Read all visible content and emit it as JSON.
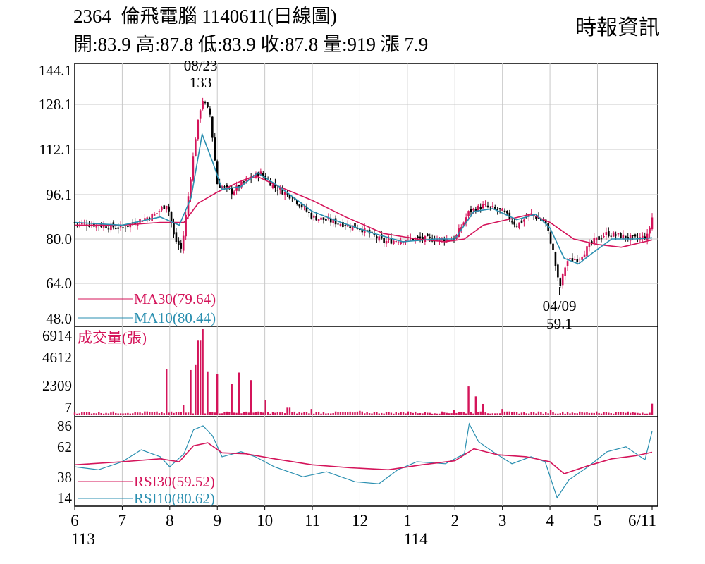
{
  "header": {
    "code": "2364",
    "name": "倫飛電腦",
    "date_label": "1140611(日線圖)",
    "source": "時報資訊",
    "ohlc": "開:83.9 高:87.8 低:83.9 收:87.8 量:919 漲 7.9"
  },
  "chart_data": [
    {
      "panel": "price",
      "type": "candlestick",
      "y_ticks": [
        "144.1",
        "128.1",
        "112.1",
        "96.1",
        "80.0",
        "64.0",
        "48.0"
      ],
      "ylim": [
        48.0,
        144.1
      ],
      "grid": true,
      "annotations": [
        {
          "label_date": "08/23",
          "label_value": "133",
          "x_month_pos": 8.68,
          "value": 133
        },
        {
          "label_date": "04/09",
          "label_value": "59.1",
          "x_month_pos": 16.2,
          "value": 59.1
        }
      ],
      "legend": [
        {
          "text": "MA30(79.64)",
          "color": "#d4145a"
        },
        {
          "text": "MA10(80.44)",
          "color": "#2a8fb0"
        }
      ],
      "close_approx": [
        {
          "m": 6.0,
          "v": 86
        },
        {
          "m": 6.5,
          "v": 85
        },
        {
          "m": 7.0,
          "v": 84
        },
        {
          "m": 7.4,
          "v": 87
        },
        {
          "m": 7.7,
          "v": 89
        },
        {
          "m": 7.95,
          "v": 93
        },
        {
          "m": 8.1,
          "v": 80
        },
        {
          "m": 8.25,
          "v": 76
        },
        {
          "m": 8.4,
          "v": 97
        },
        {
          "m": 8.55,
          "v": 118
        },
        {
          "m": 8.68,
          "v": 131
        },
        {
          "m": 8.85,
          "v": 125
        },
        {
          "m": 9.0,
          "v": 100
        },
        {
          "m": 9.3,
          "v": 97
        },
        {
          "m": 9.6,
          "v": 101
        },
        {
          "m": 9.9,
          "v": 104
        },
        {
          "m": 10.2,
          "v": 99
        },
        {
          "m": 10.6,
          "v": 95
        },
        {
          "m": 11.0,
          "v": 88
        },
        {
          "m": 11.5,
          "v": 86
        },
        {
          "m": 12.0,
          "v": 84
        },
        {
          "m": 12.5,
          "v": 79
        },
        {
          "m": 13.0,
          "v": 80
        },
        {
          "m": 13.5,
          "v": 80
        },
        {
          "m": 14.0,
          "v": 80
        },
        {
          "m": 14.3,
          "v": 90
        },
        {
          "m": 14.6,
          "v": 92
        },
        {
          "m": 15.0,
          "v": 90
        },
        {
          "m": 15.3,
          "v": 85
        },
        {
          "m": 15.6,
          "v": 89
        },
        {
          "m": 15.9,
          "v": 86
        },
        {
          "m": 16.05,
          "v": 77
        },
        {
          "m": 16.2,
          "v": 62
        },
        {
          "m": 16.35,
          "v": 72
        },
        {
          "m": 16.6,
          "v": 73
        },
        {
          "m": 16.9,
          "v": 79
        },
        {
          "m": 17.2,
          "v": 82
        },
        {
          "m": 17.5,
          "v": 81
        },
        {
          "m": 17.8,
          "v": 80
        },
        {
          "m": 18.05,
          "v": 81
        },
        {
          "m": 18.15,
          "v": 87.8
        }
      ],
      "ma10_approx": [
        {
          "m": 6.0,
          "v": 86
        },
        {
          "m": 7.0,
          "v": 85
        },
        {
          "m": 7.8,
          "v": 88
        },
        {
          "m": 8.2,
          "v": 85
        },
        {
          "m": 8.45,
          "v": 95
        },
        {
          "m": 8.68,
          "v": 118
        },
        {
          "m": 8.9,
          "v": 108
        },
        {
          "m": 9.1,
          "v": 98
        },
        {
          "m": 9.5,
          "v": 99
        },
        {
          "m": 9.85,
          "v": 104
        },
        {
          "m": 10.3,
          "v": 99
        },
        {
          "m": 11.0,
          "v": 90
        },
        {
          "m": 11.6,
          "v": 86
        },
        {
          "m": 12.3,
          "v": 82
        },
        {
          "m": 12.9,
          "v": 79
        },
        {
          "m": 13.6,
          "v": 80
        },
        {
          "m": 14.0,
          "v": 80
        },
        {
          "m": 14.4,
          "v": 90
        },
        {
          "m": 14.8,
          "v": 91
        },
        {
          "m": 15.3,
          "v": 87
        },
        {
          "m": 15.7,
          "v": 89
        },
        {
          "m": 16.0,
          "v": 84
        },
        {
          "m": 16.3,
          "v": 73
        },
        {
          "m": 16.6,
          "v": 71
        },
        {
          "m": 16.9,
          "v": 75
        },
        {
          "m": 17.3,
          "v": 80
        },
        {
          "m": 17.8,
          "v": 80
        },
        {
          "m": 18.15,
          "v": 80.44
        }
      ],
      "ma30_approx": [
        {
          "m": 6.0,
          "v": 85
        },
        {
          "m": 7.0,
          "v": 85
        },
        {
          "m": 7.8,
          "v": 86
        },
        {
          "m": 8.3,
          "v": 86
        },
        {
          "m": 8.6,
          "v": 93
        },
        {
          "m": 9.0,
          "v": 97
        },
        {
          "m": 9.5,
          "v": 101
        },
        {
          "m": 9.8,
          "v": 103
        },
        {
          "m": 10.3,
          "v": 99
        },
        {
          "m": 11.0,
          "v": 94
        },
        {
          "m": 11.7,
          "v": 88
        },
        {
          "m": 12.5,
          "v": 82
        },
        {
          "m": 13.2,
          "v": 80
        },
        {
          "m": 13.8,
          "v": 79
        },
        {
          "m": 14.2,
          "v": 80
        },
        {
          "m": 14.6,
          "v": 85
        },
        {
          "m": 15.1,
          "v": 87
        },
        {
          "m": 15.6,
          "v": 89
        },
        {
          "m": 16.0,
          "v": 86
        },
        {
          "m": 16.5,
          "v": 80
        },
        {
          "m": 17.0,
          "v": 78
        },
        {
          "m": 17.5,
          "v": 77
        },
        {
          "m": 18.15,
          "v": 79.64
        }
      ]
    },
    {
      "panel": "volume",
      "type": "bar",
      "label": "成交量(張)",
      "y_ticks": [
        "6914",
        "4612",
        "2309",
        "7"
      ],
      "ylim": [
        0,
        6914
      ],
      "bars_approx": [
        {
          "m": 7.5,
          "v": 300
        },
        {
          "m": 7.95,
          "v": 3700
        },
        {
          "m": 8.3,
          "v": 800
        },
        {
          "m": 8.45,
          "v": 3600
        },
        {
          "m": 8.55,
          "v": 4000
        },
        {
          "m": 8.62,
          "v": 6000
        },
        {
          "m": 8.68,
          "v": 6914
        },
        {
          "m": 8.8,
          "v": 3500
        },
        {
          "m": 9.0,
          "v": 3300
        },
        {
          "m": 9.3,
          "v": 2500
        },
        {
          "m": 9.45,
          "v": 3400
        },
        {
          "m": 9.7,
          "v": 2800
        },
        {
          "m": 10.0,
          "v": 1200
        },
        {
          "m": 10.5,
          "v": 600
        },
        {
          "m": 11.0,
          "v": 500
        },
        {
          "m": 12.0,
          "v": 350
        },
        {
          "m": 13.0,
          "v": 300
        },
        {
          "m": 14.0,
          "v": 400
        },
        {
          "m": 14.3,
          "v": 2300
        },
        {
          "m": 14.45,
          "v": 1500
        },
        {
          "m": 14.6,
          "v": 900
        },
        {
          "m": 15.0,
          "v": 500
        },
        {
          "m": 16.0,
          "v": 450
        },
        {
          "m": 17.0,
          "v": 300
        },
        {
          "m": 18.15,
          "v": 919
        }
      ]
    },
    {
      "panel": "rsi",
      "type": "line",
      "y_ticks": [
        "86",
        "62",
        "38",
        "14"
      ],
      "ylim": [
        5,
        92
      ],
      "legend": [
        {
          "text": "RSI30(59.52)",
          "color": "#d4145a"
        },
        {
          "text": "RSI10(80.62)",
          "color": "#2a8fb0"
        }
      ],
      "rsi10_approx": [
        {
          "m": 6.0,
          "v": 45
        },
        {
          "m": 6.5,
          "v": 42
        },
        {
          "m": 7.0,
          "v": 50
        },
        {
          "m": 7.4,
          "v": 62
        },
        {
          "m": 7.8,
          "v": 55
        },
        {
          "m": 8.0,
          "v": 45
        },
        {
          "m": 8.3,
          "v": 58
        },
        {
          "m": 8.5,
          "v": 82
        },
        {
          "m": 8.7,
          "v": 86
        },
        {
          "m": 8.9,
          "v": 76
        },
        {
          "m": 9.1,
          "v": 55
        },
        {
          "m": 9.5,
          "v": 60
        },
        {
          "m": 9.8,
          "v": 55
        },
        {
          "m": 10.2,
          "v": 45
        },
        {
          "m": 10.8,
          "v": 35
        },
        {
          "m": 11.3,
          "v": 40
        },
        {
          "m": 11.9,
          "v": 30
        },
        {
          "m": 12.4,
          "v": 28
        },
        {
          "m": 12.8,
          "v": 42
        },
        {
          "m": 13.2,
          "v": 50
        },
        {
          "m": 13.8,
          "v": 48
        },
        {
          "m": 14.2,
          "v": 58
        },
        {
          "m": 14.3,
          "v": 88
        },
        {
          "m": 14.5,
          "v": 70
        },
        {
          "m": 14.8,
          "v": 60
        },
        {
          "m": 15.2,
          "v": 48
        },
        {
          "m": 15.6,
          "v": 55
        },
        {
          "m": 15.9,
          "v": 50
        },
        {
          "m": 16.15,
          "v": 14
        },
        {
          "m": 16.4,
          "v": 32
        },
        {
          "m": 16.8,
          "v": 45
        },
        {
          "m": 17.2,
          "v": 60
        },
        {
          "m": 17.6,
          "v": 65
        },
        {
          "m": 18.0,
          "v": 52
        },
        {
          "m": 18.15,
          "v": 80.62
        }
      ],
      "rsi30_approx": [
        {
          "m": 6.0,
          "v": 47
        },
        {
          "m": 7.0,
          "v": 50
        },
        {
          "m": 7.8,
          "v": 53
        },
        {
          "m": 8.2,
          "v": 50
        },
        {
          "m": 8.5,
          "v": 66
        },
        {
          "m": 8.8,
          "v": 69
        },
        {
          "m": 9.1,
          "v": 59
        },
        {
          "m": 9.6,
          "v": 58
        },
        {
          "m": 10.2,
          "v": 53
        },
        {
          "m": 11.0,
          "v": 47
        },
        {
          "m": 11.8,
          "v": 44
        },
        {
          "m": 12.6,
          "v": 42
        },
        {
          "m": 13.3,
          "v": 47
        },
        {
          "m": 14.0,
          "v": 51
        },
        {
          "m": 14.4,
          "v": 63
        },
        {
          "m": 14.9,
          "v": 57
        },
        {
          "m": 15.5,
          "v": 55
        },
        {
          "m": 16.0,
          "v": 50
        },
        {
          "m": 16.3,
          "v": 38
        },
        {
          "m": 16.8,
          "v": 46
        },
        {
          "m": 17.3,
          "v": 53
        },
        {
          "m": 17.8,
          "v": 56
        },
        {
          "m": 18.15,
          "v": 59.52
        }
      ]
    }
  ],
  "x_axis": {
    "ticks": [
      {
        "label": "6",
        "m": 6.0
      },
      {
        "label": "7",
        "m": 7.0
      },
      {
        "label": "8",
        "m": 8.0
      },
      {
        "label": "9",
        "m": 9.0
      },
      {
        "label": "10",
        "m": 10.0
      },
      {
        "label": "11",
        "m": 11.0
      },
      {
        "label": "12",
        "m": 12.0
      },
      {
        "label": "1",
        "m": 13.0
      },
      {
        "label": "2",
        "m": 14.0
      },
      {
        "label": "3",
        "m": 15.0
      },
      {
        "label": "4",
        "m": 16.0
      },
      {
        "label": "5",
        "m": 17.0
      },
      {
        "label": "6/11",
        "m": 18.15
      }
    ],
    "year_labels": [
      {
        "label": "113",
        "m": 6.0
      },
      {
        "label": "114",
        "m": 13.0
      }
    ],
    "range": [
      6.0,
      18.15
    ]
  },
  "colors": {
    "up": "#d4145a",
    "down": "#000000",
    "ma30": "#d4145a",
    "ma10": "#2a8fb0",
    "grid": "#c8c8c8"
  }
}
